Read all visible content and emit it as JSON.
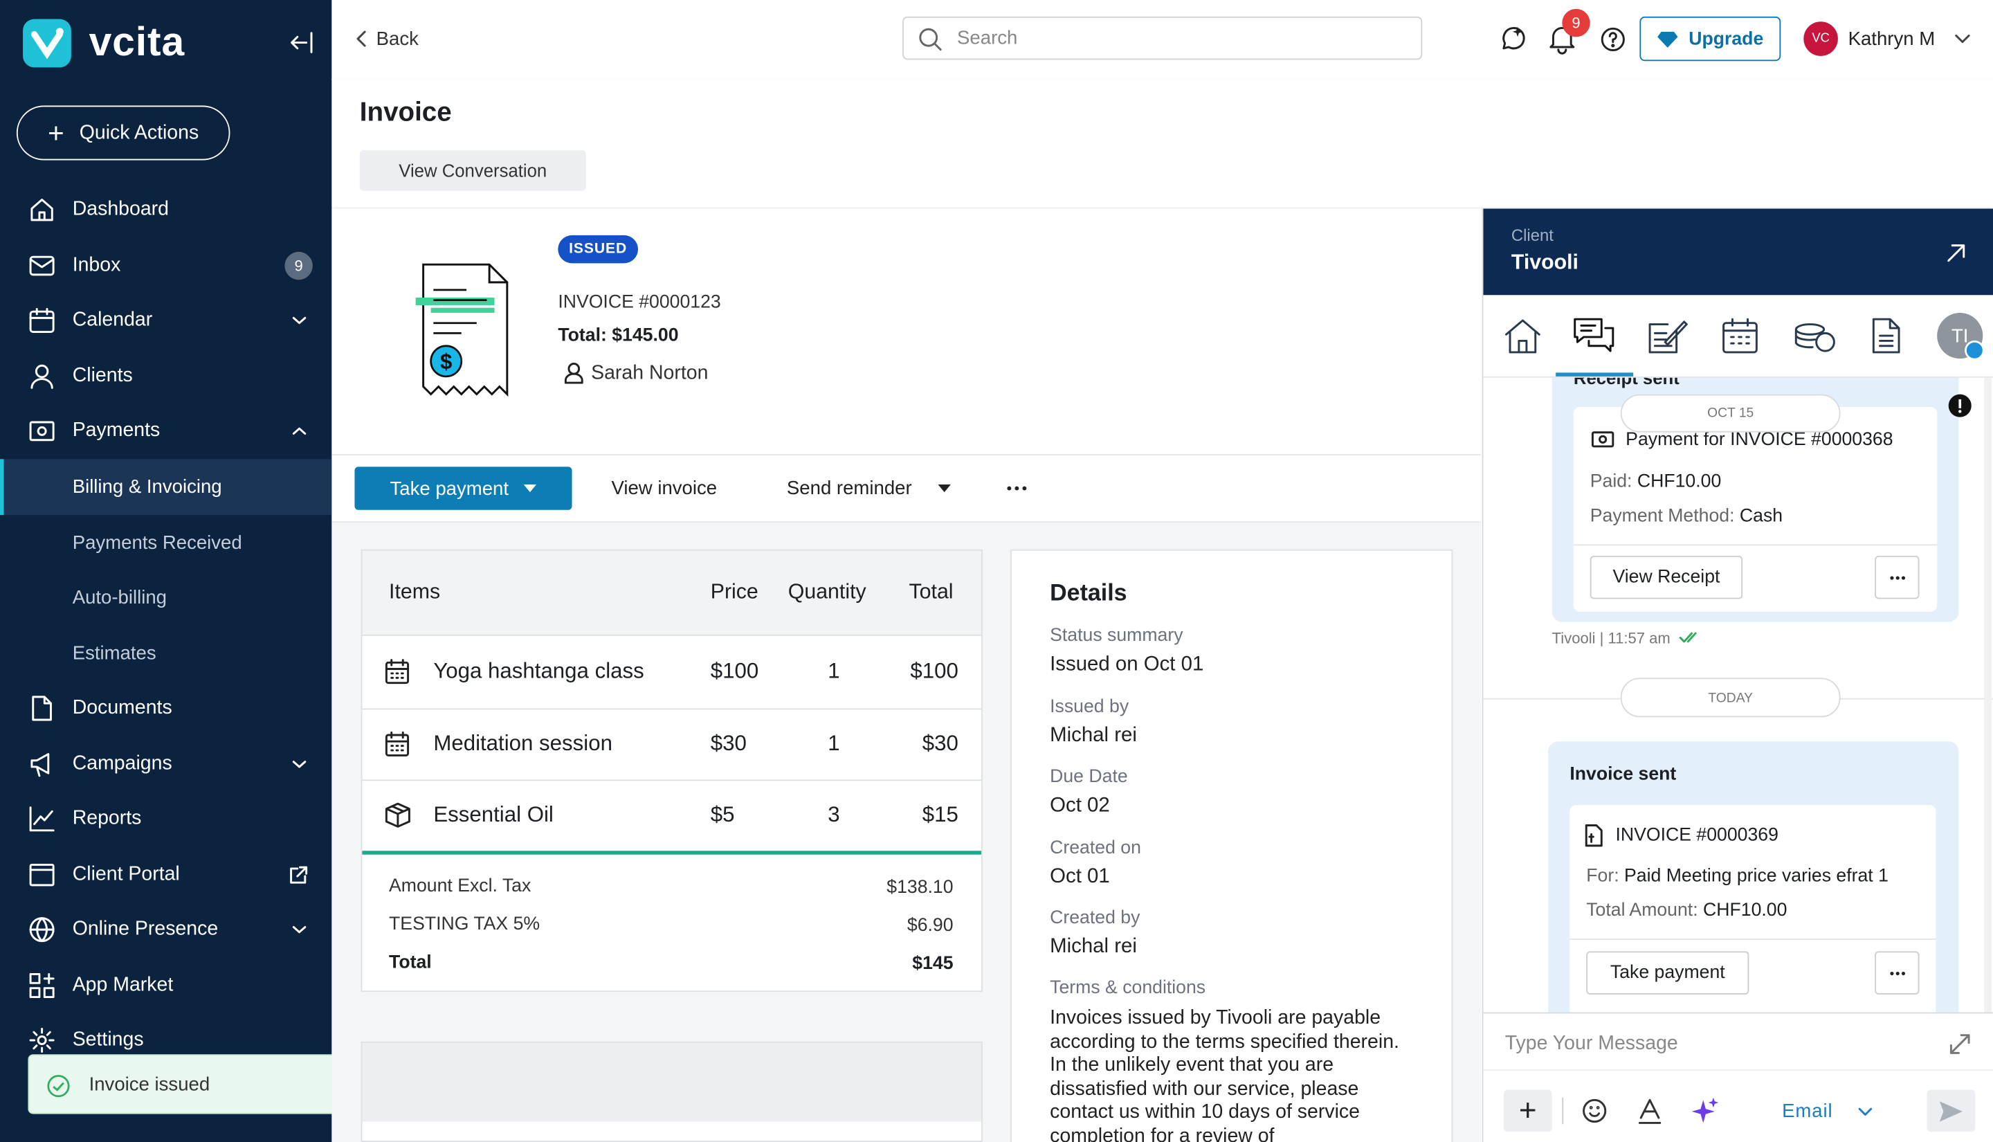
{
  "sidebar": {
    "brand": "vcita",
    "quick_actions": "Quick Actions",
    "nav_top": [
      "Dashboard",
      "Inbox",
      "Calendar",
      "Clients",
      "Payments"
    ],
    "inbox_badge": "9",
    "payments_submenu": [
      "Billing & Invoicing",
      "Payments Received",
      "Auto-billing",
      "Estimates"
    ],
    "nav_bottom": [
      "Documents",
      "Campaigns",
      "Reports",
      "Client Portal",
      "Online Presence",
      "App Market",
      "Settings"
    ]
  },
  "toast": "Invoice issued",
  "topbar": {
    "back": "Back",
    "search_placeholder": "Search",
    "notifications": "9",
    "upgrade": "Upgrade",
    "user_initials": "VC",
    "user_name": "Kathryn M"
  },
  "page": {
    "title": "Invoice",
    "view_conversation": "View Conversation"
  },
  "invoice": {
    "status": "ISSUED",
    "number": "INVOICE #0000123",
    "total": "Total: $145.00",
    "client": "Sarah Norton"
  },
  "actions": {
    "take_payment": "Take payment",
    "view_invoice": "View invoice",
    "send_reminder": "Send reminder"
  },
  "items_table": {
    "headers": [
      "Items",
      "Price",
      "Quantity",
      "Total"
    ],
    "rows": [
      [
        "Yoga hashtanga class",
        "$100",
        "1",
        "$100"
      ],
      [
        "Meditation session",
        "$30",
        "1",
        "$30"
      ],
      [
        "Essential Oil",
        "$5",
        "3",
        "$15"
      ]
    ],
    "summary": [
      [
        "Amount Excl. Tax",
        "$138.10"
      ],
      [
        "TESTING TAX 5%",
        "$6.90"
      ],
      [
        "Total",
        "$145"
      ]
    ]
  },
  "details": {
    "title": "Details",
    "fields": [
      {
        "label": "Status summary",
        "value": "Issued on Oct 01"
      },
      {
        "label": "Issued by",
        "value": "Michal rei"
      },
      {
        "label": "Due Date",
        "value": "Oct 02"
      },
      {
        "label": "Created on",
        "value": "Oct 01"
      },
      {
        "label": "Created by",
        "value": "Michal rei"
      }
    ],
    "terms_label": "Terms & conditions",
    "terms": "Invoices issued by Tivooli are payable according to the terms specified therein. In the unlikely event that you are dissatisfied with our service, please contact us within 10 days of service completion for a review of"
  },
  "client_panel": {
    "label": "Client",
    "name": "Tivooli",
    "avatar": "TI",
    "partial_title": "Receipt sent",
    "date1": "OCT 15",
    "receipt": {
      "title": "Payment for INVOICE #0000368",
      "paid_label": "Paid:",
      "paid": "CHF10.00",
      "method_label": "Payment Method:",
      "method": "Cash",
      "button": "View Receipt"
    },
    "meta": "Tivooli | 11:57 am",
    "date2": "TODAY",
    "invoice_sent": {
      "title": "Invoice sent",
      "number": "INVOICE #0000369",
      "for_label": "For:",
      "for": "Paid Meeting price varies efrat 1",
      "amount_label": "Total Amount:",
      "amount": "CHF10.00",
      "button": "Take payment"
    },
    "message_placeholder": "Type Your Message",
    "channel": "Email"
  }
}
